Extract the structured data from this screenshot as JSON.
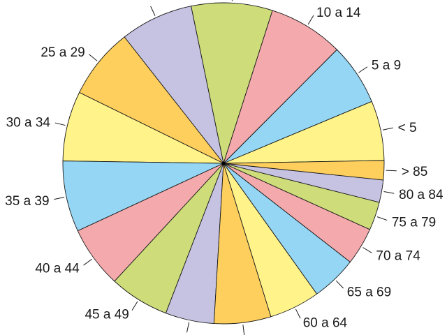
{
  "chart_data": {
    "type": "pie",
    "title": "",
    "legend": "none",
    "slices": [
      {
        "label": "< 5",
        "value": 5.9,
        "color": "#fff38a"
      },
      {
        "label": "5 a 9",
        "value": 6.1,
        "color": "#94d6f4"
      },
      {
        "label": "10 a 14",
        "value": 7.4,
        "color": "#f4aaac"
      },
      {
        "label": "",
        "value": 8.0,
        "color": "#cedc7a"
      },
      {
        "label": "",
        "value": 7.2,
        "color": "#c6c3e2"
      },
      {
        "label": "25 a 29",
        "value": 7.0,
        "color": "#fecf5c"
      },
      {
        "label": "30 a 34",
        "value": 6.9,
        "color": "#fff38a"
      },
      {
        "label": "35 a 39",
        "value": 7.0,
        "color": "#94d6f4"
      },
      {
        "label": "40 a 44",
        "value": 6.1,
        "color": "#f4aaac"
      },
      {
        "label": "45 a 49",
        "value": 5.9,
        "color": "#cedc7a"
      },
      {
        "label": "",
        "value": 4.8,
        "color": "#c6c3e2"
      },
      {
        "label": "",
        "value": 5.6,
        "color": "#fecf5c"
      },
      {
        "label": "60 a 64",
        "value": 5.0,
        "color": "#fff38a"
      },
      {
        "label": "65 a 69",
        "value": 4.5,
        "color": "#94d6f4"
      },
      {
        "label": "70 a 74",
        "value": 3.7,
        "color": "#f4aaac"
      },
      {
        "label": "75 a 79",
        "value": 2.8,
        "color": "#cedc7a"
      },
      {
        "label": "80 a 84",
        "value": 2.2,
        "color": "#c6c3e2"
      },
      {
        "label": "> 85",
        "value": 1.9,
        "color": "#fecf5c"
      }
    ]
  }
}
